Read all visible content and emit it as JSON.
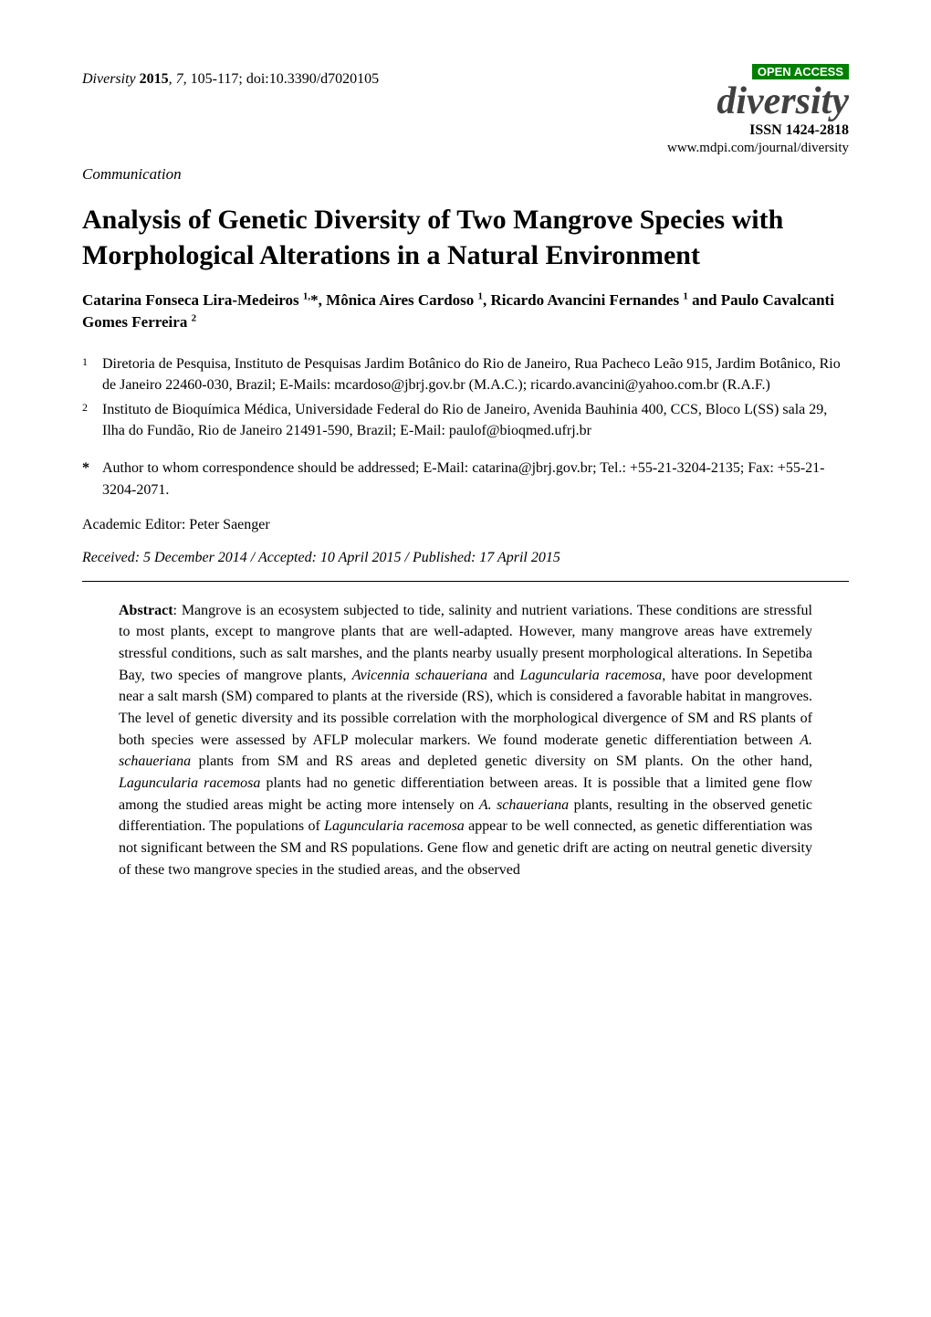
{
  "header": {
    "journal_name": "Diversity",
    "year": "2015",
    "volume": "7",
    "pages": "105-117",
    "doi": "doi:10.3390/d7020105",
    "open_access_label": "OPEN ACCESS",
    "logo_text": "diversity",
    "issn": "ISSN 1424-2818",
    "url": "www.mdpi.com/journal/diversity"
  },
  "article_type": "Communication",
  "title": "Analysis of Genetic Diversity of Two Mangrove Species with Morphological Alterations in a Natural Environment",
  "authors_html": "Catarina Fonseca Lira-Medeiros <span class='sup'>1,</span>*, Mônica Aires Cardoso <span class='sup'>1</span>, Ricardo Avancini Fernandes <span class='sup'>1</span> and Paulo Cavalcanti Gomes Ferreira <span class='sup'>2</span>",
  "affiliations": [
    {
      "num": "1",
      "text": "Diretoria de Pesquisa, Instituto de Pesquisas Jardim Botânico do Rio de Janeiro, Rua Pacheco Leão 915, Jardim Botânico, Rio de Janeiro 22460-030, Brazil; E-Mails: mcardoso@jbrj.gov.br (M.A.C.); ricardo.avancini@yahoo.com.br (R.A.F.)"
    },
    {
      "num": "2",
      "text": "Instituto de Bioquímica Médica, Universidade Federal do Rio de Janeiro, Avenida Bauhinia 400, CCS, Bloco L(SS) sala 29, Ilha do Fundão, Rio de Janeiro 21491-590, Brazil; E-Mail: paulof@bioqmed.ufrj.br"
    }
  ],
  "corresponding": {
    "marker": "*",
    "text": "Author to whom correspondence should be addressed; E-Mail: catarina@jbrj.gov.br; Tel.: +55-21-3204-2135; Fax: +55-21-3204-2071."
  },
  "editor": "Academic Editor: Peter Saenger",
  "dates": "Received: 5 December 2014 / Accepted: 10 April 2015 / Published: 17 April 2015",
  "abstract": {
    "label": "Abstract",
    "text_html": ": Mangrove is an ecosystem subjected to tide, salinity and nutrient variations. These conditions are stressful to most plants, except to mangrove plants that are well-adapted. However, many mangrove areas have extremely stressful conditions, such as salt marshes, and the plants nearby usually present morphological alterations. In Sepetiba Bay, two species of mangrove plants, <span class='species-italic'>Avicennia schaueriana</span> and <span class='species-italic'>Laguncularia racemosa,</span> have poor development near a salt marsh (SM) compared to plants at the riverside (RS), which is considered a favorable habitat in mangroves. The level of genetic diversity and its possible correlation with the morphological divergence of SM and RS plants of both species were assessed by AFLP molecular markers. We found moderate genetic differentiation between <span class='species-italic'>A. schaueriana</span> plants from SM and RS areas and depleted genetic diversity on SM plants. On the other hand, <span class='species-italic'>Laguncularia racemosa</span> plants had no genetic differentiation between areas. It is possible that a limited gene flow among the studied areas might be acting more intensely on <span class='species-italic'>A. schaueriana</span> plants, resulting in the observed genetic differentiation. The populations of <span class='species-italic'>Laguncularia racemosa</span> appear to be well connected, as genetic differentiation was not significant between the SM and RS populations. Gene flow and genetic drift are acting on neutral genetic diversity of these two mangrove species in the studied areas, and the observed"
  },
  "colors": {
    "open_access_bg": "#008000",
    "open_access_fg": "#ffffff",
    "logo_color": "#404040",
    "text_color": "#000000",
    "background": "#ffffff",
    "divider": "#000000"
  },
  "typography": {
    "body_font": "Times New Roman",
    "title_size_pt": 22,
    "body_size_pt": 12,
    "logo_size_pt": 32
  }
}
